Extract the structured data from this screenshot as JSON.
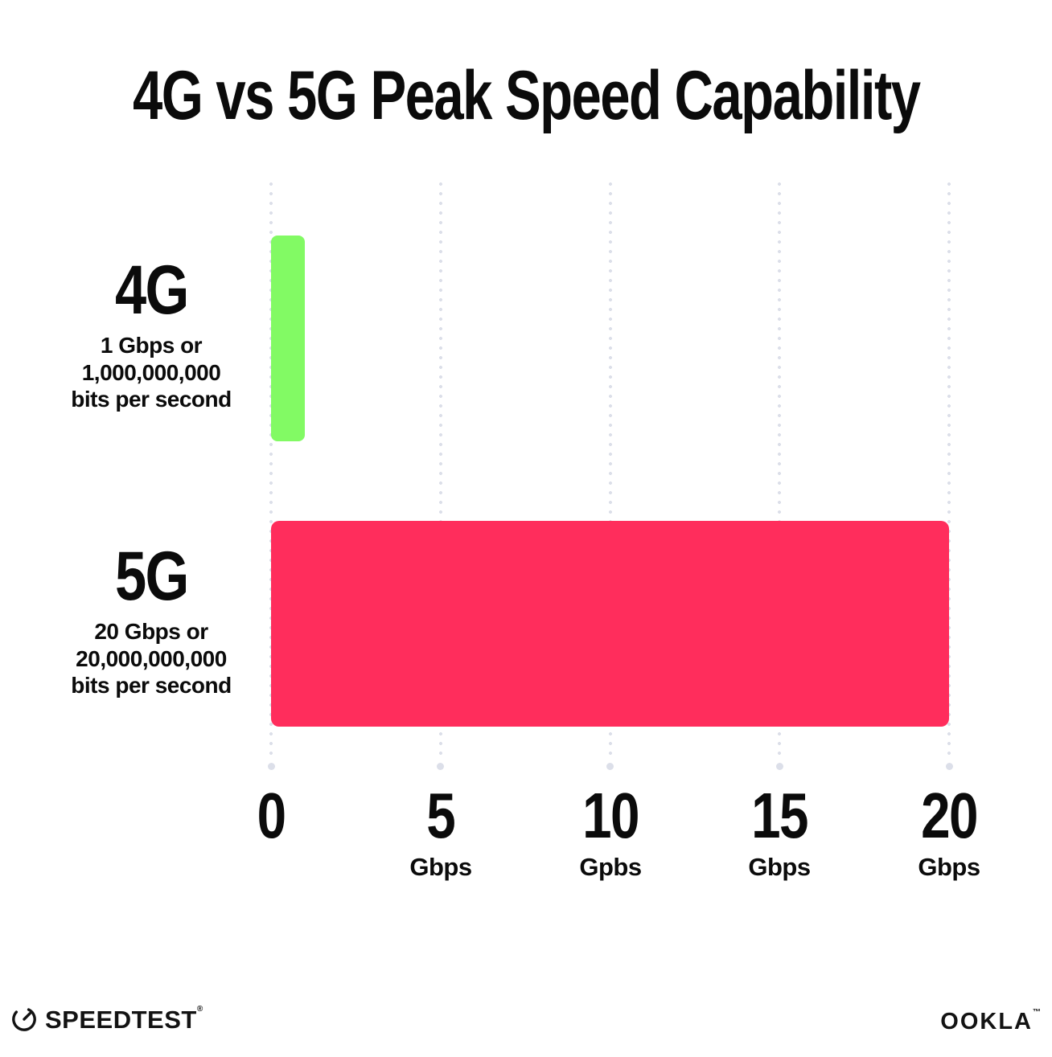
{
  "title": "4G vs 5G Peak Speed Capability",
  "chart_data": {
    "type": "bar",
    "orientation": "horizontal",
    "title": "4G vs 5G Peak Speed Capability",
    "categories": [
      "4G",
      "5G"
    ],
    "values": [
      1,
      20
    ],
    "value_unit": "Gbps",
    "xlabel": "",
    "ylabel": "",
    "xlim": [
      0,
      20
    ],
    "xticks": [
      0,
      5,
      10,
      15,
      20
    ],
    "grid": "dotted-vertical-gridlines",
    "legend": "none",
    "bar_colors": [
      "#82FA64",
      "#FF2D5C"
    ],
    "annotations": [
      "4G: 1 Gbps or 1,000,000,000 bits per second",
      "5G: 20 Gbps or 20,000,000,000 bits per second"
    ]
  },
  "rows": [
    {
      "label": "4G",
      "desc_line1": "1 Gbps or",
      "desc_line2": "1,000,000,000",
      "desc_line3": "bits per second"
    },
    {
      "label": "5G",
      "desc_line1": "20 Gbps or",
      "desc_line2": "20,000,000,000",
      "desc_line3": "bits per second"
    }
  ],
  "axis": {
    "ticks": [
      {
        "value": "0",
        "unit": ""
      },
      {
        "value": "5",
        "unit": "Gbps"
      },
      {
        "value": "10",
        "unit": "Gpbs"
      },
      {
        "value": "15",
        "unit": "Gbps"
      },
      {
        "value": "20",
        "unit": "Gbps"
      }
    ]
  },
  "footer": {
    "speedtest_label": "SPEEDTEST",
    "speedtest_mark": "®",
    "ookla_label": "OOKLA",
    "ookla_mark": "™"
  },
  "colors": {
    "bar_4g": "#82FA64",
    "bar_5g": "#FF2D5C",
    "gridline": "#DCDFE9",
    "text": "#0B0B0B",
    "background": "#FFFFFF"
  }
}
